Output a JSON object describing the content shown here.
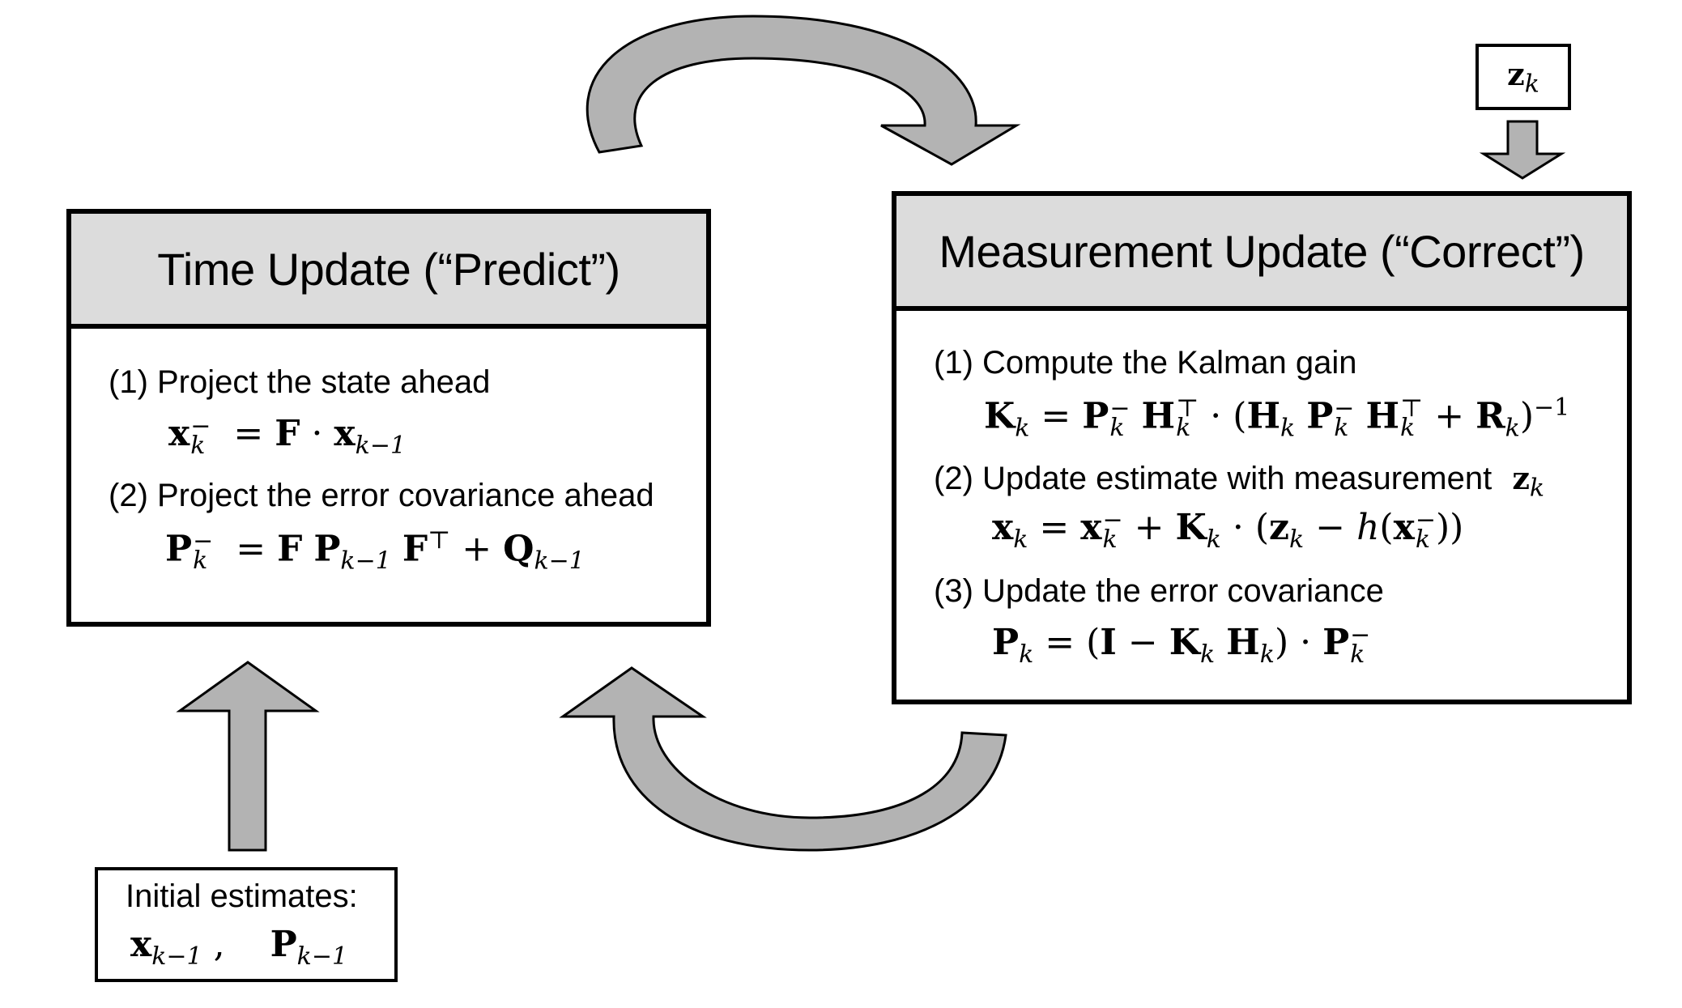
{
  "time_update": {
    "title": "Time Update (“Predict”)",
    "step1": "(1) Project the state ahead",
    "step2": "(2) Project the error covariance ahead"
  },
  "measurement_update": {
    "title": "Measurement Update (“Correct”)",
    "step1": "(1) Compute the Kalman gain",
    "step2": "(2) Update estimate with measurement",
    "step3": "(3) Update the error covariance"
  },
  "initial": {
    "label": "Initial estimates:"
  },
  "measurement_input": "z",
  "colors": {
    "arrow_fill": "#b3b3b3",
    "header_fill": "#dcdcdc",
    "border": "#000000"
  }
}
